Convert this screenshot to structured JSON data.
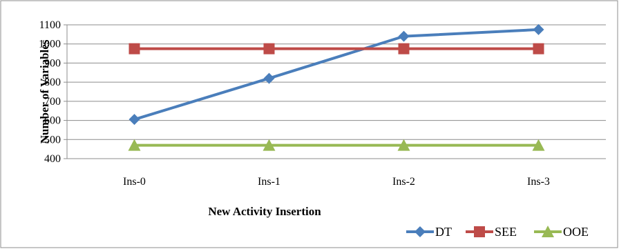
{
  "chart_data": {
    "type": "line",
    "categories": [
      "Ins-0",
      "Ins-1",
      "Ins-2",
      "Ins-3"
    ],
    "xlabel": "New Activity Insertion",
    "ylabel": "Number of Variables",
    "ylim": [
      400,
      1100
    ],
    "yticks": [
      400,
      500,
      600,
      700,
      800,
      900,
      1000,
      1100
    ],
    "grid": true,
    "legend_position": "bottom-right",
    "series": [
      {
        "name": "DT",
        "values": [
          605,
          820,
          1040,
          1075
        ],
        "color": "#4a7ebb",
        "marker": "diamond"
      },
      {
        "name": "SEE",
        "values": [
          975,
          975,
          975,
          975
        ],
        "color": "#be4b48",
        "marker": "square"
      },
      {
        "name": "OOE",
        "values": [
          470,
          470,
          470,
          470
        ],
        "color": "#98b954",
        "marker": "triangle"
      }
    ]
  }
}
